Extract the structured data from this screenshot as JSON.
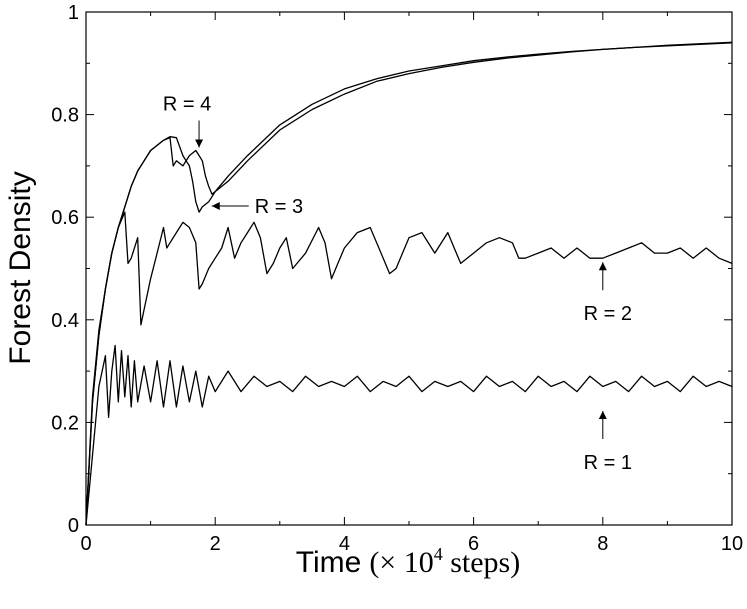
{
  "chart_data": {
    "type": "line",
    "title": "",
    "xlabel": "Time",
    "xlabel_unit": "(× 10",
    "xlabel_exp": "4",
    "xlabel_suffix": " steps)",
    "ylabel": "Forest Density",
    "xlim": [
      0,
      10
    ],
    "ylim": [
      0,
      1
    ],
    "xticks": [
      "0",
      "2",
      "4",
      "6",
      "8",
      "10"
    ],
    "yticks": [
      "0",
      "0.2",
      "0.4",
      "0.6",
      "0.8",
      "1"
    ],
    "grid": false,
    "series": [
      {
        "key": "r1",
        "x": [
          0,
          0.2,
          0.3,
          0.35,
          0.4,
          0.45,
          0.5,
          0.55,
          0.6,
          0.65,
          0.7,
          0.75,
          0.8,
          0.9,
          1.0,
          1.1,
          1.2,
          1.3,
          1.4,
          1.5,
          1.6,
          1.7,
          1.8,
          1.9,
          2.0,
          2.2,
          2.4,
          2.6,
          2.8,
          3.0,
          3.2,
          3.4,
          3.6,
          3.8,
          4.0,
          4.2,
          4.4,
          4.6,
          4.8,
          5.0,
          5.2,
          5.4,
          5.6,
          5.8,
          6.0,
          6.2,
          6.4,
          6.6,
          6.8,
          7.0,
          7.2,
          7.4,
          7.6,
          7.8,
          8.0,
          8.2,
          8.4,
          8.6,
          8.8,
          9.0,
          9.2,
          9.4,
          9.6,
          9.8,
          10.0
        ],
        "y": [
          0.0,
          0.27,
          0.33,
          0.21,
          0.3,
          0.35,
          0.24,
          0.34,
          0.25,
          0.33,
          0.23,
          0.32,
          0.24,
          0.31,
          0.24,
          0.32,
          0.23,
          0.32,
          0.23,
          0.31,
          0.24,
          0.3,
          0.23,
          0.29,
          0.26,
          0.3,
          0.26,
          0.29,
          0.27,
          0.28,
          0.26,
          0.29,
          0.27,
          0.28,
          0.27,
          0.29,
          0.26,
          0.28,
          0.27,
          0.29,
          0.26,
          0.28,
          0.27,
          0.28,
          0.26,
          0.29,
          0.27,
          0.28,
          0.26,
          0.29,
          0.27,
          0.28,
          0.26,
          0.29,
          0.27,
          0.28,
          0.26,
          0.29,
          0.27,
          0.28,
          0.26,
          0.29,
          0.27,
          0.28,
          0.27
        ]
      },
      {
        "key": "r2",
        "x": [
          0,
          0.1,
          0.2,
          0.3,
          0.4,
          0.5,
          0.6,
          0.65,
          0.7,
          0.8,
          0.85,
          0.9,
          1.0,
          1.1,
          1.2,
          1.25,
          1.3,
          1.4,
          1.5,
          1.6,
          1.7,
          1.75,
          1.8,
          1.9,
          2.0,
          2.1,
          2.2,
          2.3,
          2.4,
          2.5,
          2.6,
          2.7,
          2.8,
          2.9,
          3.0,
          3.1,
          3.2,
          3.4,
          3.6,
          3.7,
          3.8,
          3.9,
          4.0,
          4.2,
          4.4,
          4.6,
          4.7,
          4.8,
          4.9,
          5.0,
          5.2,
          5.4,
          5.6,
          5.7,
          5.8,
          6.0,
          6.2,
          6.4,
          6.6,
          6.7,
          6.8,
          7.0,
          7.2,
          7.4,
          7.6,
          7.8,
          8.0,
          8.2,
          8.4,
          8.6,
          8.8,
          9.0,
          9.2,
          9.4,
          9.6,
          9.8,
          10.0
        ],
        "y": [
          0.0,
          0.25,
          0.38,
          0.46,
          0.53,
          0.58,
          0.61,
          0.51,
          0.52,
          0.56,
          0.39,
          0.42,
          0.48,
          0.53,
          0.58,
          0.54,
          0.55,
          0.57,
          0.59,
          0.58,
          0.55,
          0.46,
          0.47,
          0.5,
          0.52,
          0.54,
          0.58,
          0.52,
          0.55,
          0.57,
          0.59,
          0.56,
          0.49,
          0.51,
          0.54,
          0.56,
          0.5,
          0.53,
          0.58,
          0.55,
          0.48,
          0.51,
          0.54,
          0.57,
          0.58,
          0.52,
          0.49,
          0.5,
          0.53,
          0.56,
          0.57,
          0.53,
          0.57,
          0.54,
          0.51,
          0.53,
          0.55,
          0.56,
          0.55,
          0.52,
          0.52,
          0.53,
          0.54,
          0.52,
          0.54,
          0.52,
          0.52,
          0.53,
          0.54,
          0.55,
          0.53,
          0.53,
          0.54,
          0.52,
          0.54,
          0.52,
          0.51
        ]
      },
      {
        "key": "r3",
        "x": [
          0,
          0.1,
          0.2,
          0.3,
          0.4,
          0.5,
          0.6,
          0.7,
          0.8,
          0.9,
          1.0,
          1.1,
          1.2,
          1.3,
          1.4,
          1.5,
          1.55,
          1.6,
          1.65,
          1.7,
          1.75,
          1.8,
          1.9,
          2.0,
          2.2,
          2.5,
          3.0,
          3.5,
          4.0,
          4.5,
          5.0,
          5.5,
          6.0,
          6.5,
          7.0,
          7.5,
          8.0,
          8.5,
          9.0,
          9.5,
          10.0
        ],
        "y": [
          0.0,
          0.24,
          0.37,
          0.46,
          0.53,
          0.58,
          0.62,
          0.66,
          0.69,
          0.71,
          0.73,
          0.74,
          0.75,
          0.757,
          0.755,
          0.72,
          0.71,
          0.7,
          0.67,
          0.63,
          0.61,
          0.62,
          0.63,
          0.65,
          0.68,
          0.72,
          0.78,
          0.82,
          0.85,
          0.87,
          0.885,
          0.895,
          0.905,
          0.912,
          0.918,
          0.923,
          0.927,
          0.931,
          0.934,
          0.937,
          0.94
        ]
      },
      {
        "key": "r4",
        "x": [
          0,
          0.1,
          0.2,
          0.3,
          0.4,
          0.5,
          0.6,
          0.7,
          0.8,
          0.9,
          1.0,
          1.1,
          1.2,
          1.3,
          1.35,
          1.4,
          1.5,
          1.6,
          1.7,
          1.75,
          1.8,
          1.85,
          1.9,
          1.95,
          2.0,
          2.1,
          2.2,
          2.5,
          3.0,
          3.5,
          4.0,
          4.5,
          5.0,
          5.5,
          6.0,
          6.5,
          7.0,
          7.5,
          8.0,
          8.5,
          9.0,
          9.5,
          10.0
        ],
        "y": [
          0.0,
          0.24,
          0.37,
          0.46,
          0.53,
          0.58,
          0.62,
          0.66,
          0.69,
          0.71,
          0.73,
          0.74,
          0.75,
          0.755,
          0.7,
          0.71,
          0.7,
          0.72,
          0.73,
          0.72,
          0.71,
          0.68,
          0.66,
          0.645,
          0.65,
          0.66,
          0.67,
          0.71,
          0.77,
          0.81,
          0.84,
          0.865,
          0.88,
          0.892,
          0.902,
          0.91,
          0.916,
          0.922,
          0.927,
          0.931,
          0.935,
          0.938,
          0.941
        ]
      }
    ],
    "annotations": [
      {
        "key": "r4",
        "text": "R = 4",
        "arrow": "down",
        "target": [
          1.75,
          0.73
        ]
      },
      {
        "key": "r3",
        "text": "R = 3",
        "arrow": "left",
        "target": [
          1.9,
          0.612
        ]
      },
      {
        "key": "r2",
        "text": "R = 2",
        "arrow": "up",
        "target": [
          8.0,
          0.52
        ]
      },
      {
        "key": "r1",
        "text": "R = 1",
        "arrow": "up",
        "target": [
          8.0,
          0.23
        ]
      }
    ]
  }
}
